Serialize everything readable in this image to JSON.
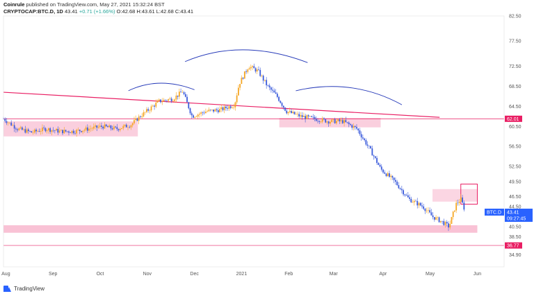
{
  "header": {
    "publisher": "Coinrule",
    "published_text": "published on TradingView.com, May 27, 2021 15:32:24 BST",
    "symbol": "CRYPTOCAP:BTC.D, 1D",
    "last": "43.41",
    "change": "+0.71 (+1.66%)",
    "ohlc": "O:42.68 H:43.61 L:42.68 C:43.41"
  },
  "footer": {
    "brand": "TradingView"
  },
  "colors": {
    "up": "#26a69a",
    "bull_candle": "#f5a623",
    "bear_candle": "#3b5bdb",
    "trendline": "#e91e63",
    "arc": "#2438b8",
    "zone": "#f8bbd0",
    "price_label": "#2962ff",
    "level_label": "#e91e63"
  },
  "chart_data": {
    "type": "candlestick",
    "symbol": "BTC.D",
    "timeframe": "1D",
    "ylim": [
      32.5,
      82.5
    ],
    "y_ticks": [
      34.9,
      38.5,
      40.5,
      44.5,
      46.5,
      49.5,
      52.5,
      56.5,
      60.5,
      64.5,
      68.5,
      72.5,
      77.5,
      82.5
    ],
    "x_ticks": [
      "Aug",
      "Sep",
      "Oct",
      "Nov",
      "Dec",
      "2021",
      "Feb",
      "Mar",
      "Apr",
      "May",
      "Jun"
    ],
    "x_range_months_from_aug2020": [
      0,
      10.5
    ],
    "series": [
      {
        "x": [
          0.0,
          0.3,
          0.6,
          0.9,
          1.2,
          1.5,
          1.8,
          2.1,
          2.4,
          2.7,
          2.9,
          3.1,
          3.3,
          3.6,
          3.8,
          4.0,
          4.3,
          4.6,
          4.9,
          5.0,
          5.2,
          5.4,
          5.6,
          5.8,
          6.0,
          6.3,
          6.6,
          6.9,
          7.2,
          7.5,
          7.8,
          8.0,
          8.3,
          8.6,
          8.9,
          9.1,
          9.3,
          9.45,
          9.6,
          9.7,
          9.8
        ],
        "values": [
          62.0,
          60.0,
          59.3,
          60.0,
          59.5,
          59.5,
          60.0,
          60.5,
          60.0,
          60.8,
          62.5,
          64.0,
          65.5,
          66.0,
          67.5,
          62.5,
          63.5,
          63.8,
          64.8,
          69.0,
          72.5,
          71.5,
          68.5,
          66.5,
          63.5,
          62.5,
          62.0,
          61.5,
          61.5,
          60.0,
          55.5,
          52.0,
          49.5,
          46.0,
          44.5,
          42.5,
          41.5,
          40.5,
          45.0,
          46.0,
          43.41
        ]
      }
    ],
    "annotations": [
      "descending trendline from ~67 (Aug) to ~62.5 (May)",
      "horizontal level 62.01",
      "horizontal level 36.77",
      "support zone ~40",
      "head and shoulders arcs",
      "highlight box near May lows"
    ]
  },
  "price_labels": {
    "level_62": "62.01",
    "level_36": "36.77",
    "current_symbol": "BTC.D",
    "current_price": "43.41",
    "countdown": "09:27:45"
  }
}
